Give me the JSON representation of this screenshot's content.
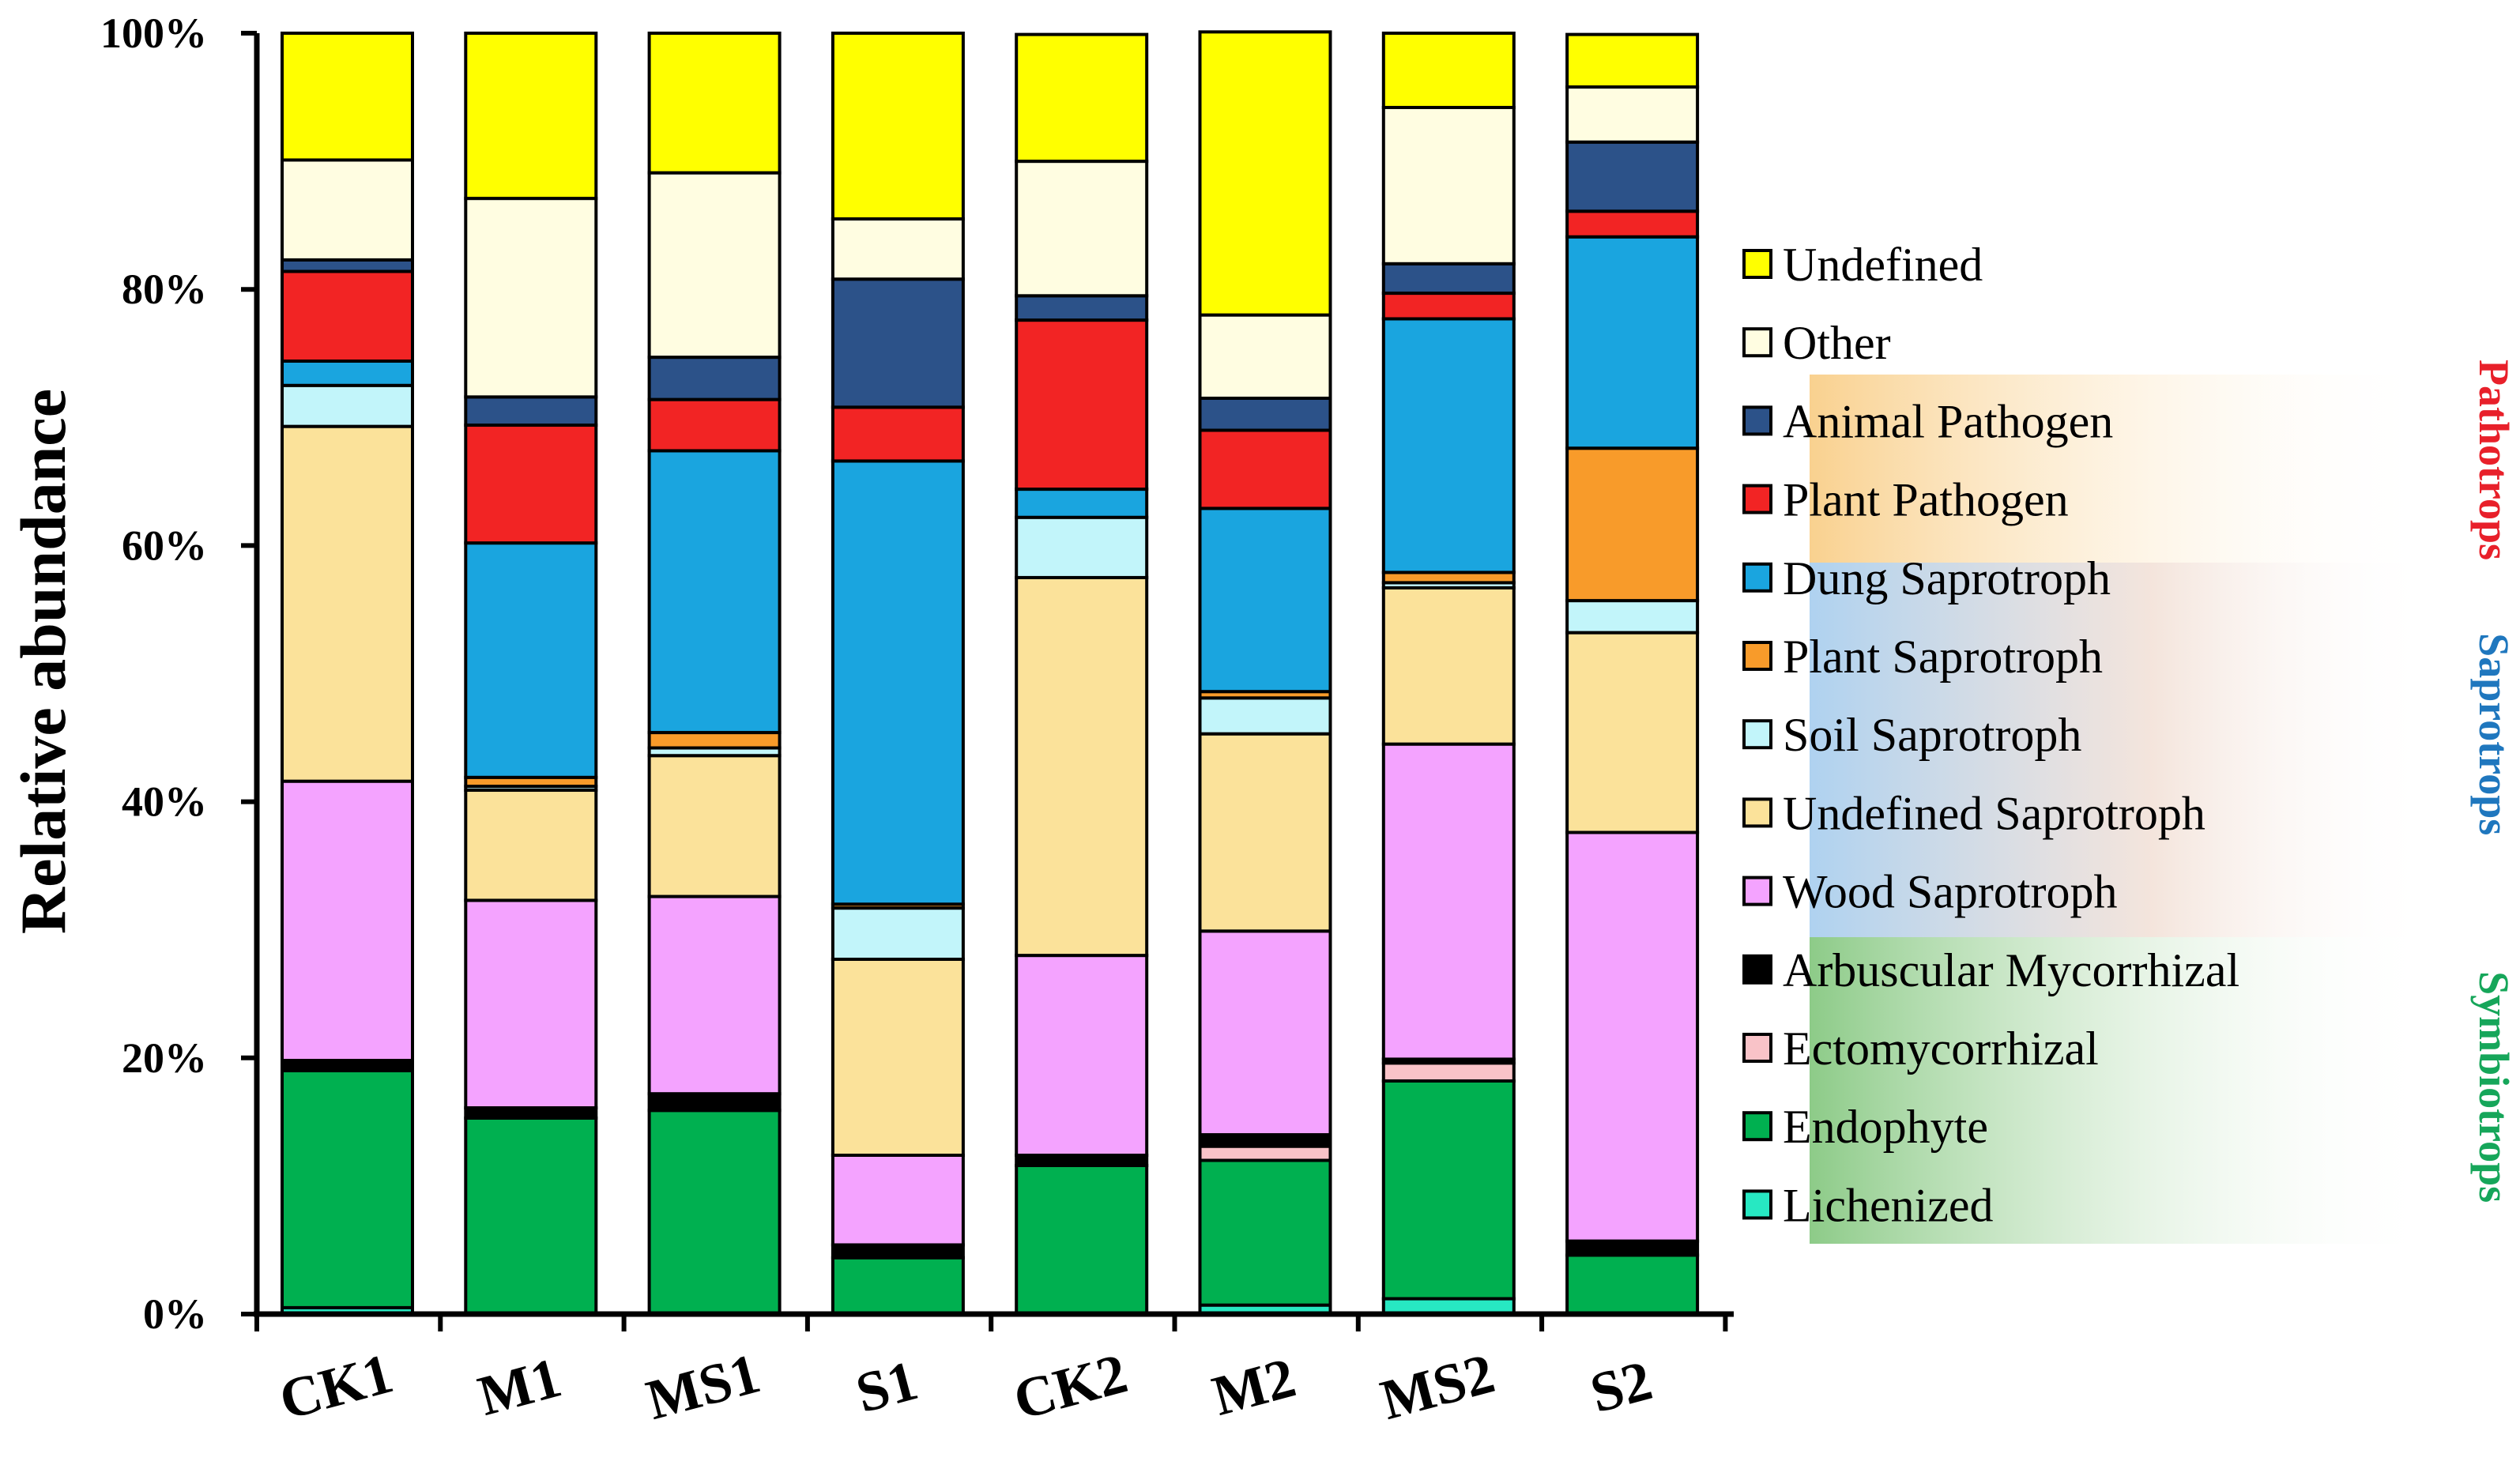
{
  "chart_data": {
    "type": "bar",
    "stacked": true,
    "title": "",
    "xlabel": "",
    "ylabel": "Relative abundance",
    "ylim": [
      0,
      100
    ],
    "ytick_labels": [
      "0%",
      "20%",
      "40%",
      "60%",
      "80%",
      "100%"
    ],
    "ytick_values": [
      0,
      20,
      40,
      60,
      80,
      100
    ],
    "categories": [
      "CK1",
      "M1",
      "MS1",
      "S1",
      "CK2",
      "M2",
      "MS2",
      "S2"
    ],
    "series": [
      {
        "name": "Lichenized",
        "color": "#27E8C2",
        "values": [
          0.5,
          0,
          0,
          0,
          0,
          0.7,
          1.2,
          0
        ]
      },
      {
        "name": "Endophyte",
        "color": "#00B050",
        "values": [
          18.5,
          15.3,
          15.9,
          4.4,
          11.6,
          11.3,
          17.0,
          4.6
        ]
      },
      {
        "name": "Ectomycorrhizal",
        "color": "#F9C3C8",
        "values": [
          0,
          0,
          0,
          0,
          0,
          1.1,
          1.4,
          0
        ]
      },
      {
        "name": "Arbuscular Mycorrhizal",
        "color": "#000000",
        "values": [
          0.8,
          0.8,
          1.3,
          1.0,
          0.8,
          0.9,
          0.3,
          1.1
        ]
      },
      {
        "name": "Wood Saprotroph",
        "color": "#F4A3FF",
        "values": [
          21.8,
          16.2,
          15.4,
          7.0,
          15.6,
          15.9,
          24.6,
          31.9
        ]
      },
      {
        "name": "Undefined Saprotroph",
        "color": "#FBE29A",
        "values": [
          27.7,
          8.6,
          11.0,
          15.3,
          29.5,
          15.4,
          12.2,
          15.6
        ]
      },
      {
        "name": "Soil Saprotroph",
        "color": "#C2F5FA",
        "values": [
          3.2,
          0.3,
          0.6,
          4.0,
          4.7,
          2.8,
          0.4,
          2.5
        ]
      },
      {
        "name": "Plant Saprotroph",
        "color": "#F89B2A",
        "values": [
          0,
          0.7,
          1.2,
          0.3,
          0,
          0.5,
          0.8,
          11.9
        ]
      },
      {
        "name": "Dung Saprotroph",
        "color": "#1AA5DF",
        "values": [
          1.9,
          18.3,
          22.0,
          34.6,
          2.2,
          14.3,
          19.8,
          16.5
        ]
      },
      {
        "name": "Plant Pathogen",
        "color": "#F22424",
        "values": [
          7.0,
          9.2,
          4.0,
          4.2,
          13.2,
          6.1,
          2.0,
          2.0
        ]
      },
      {
        "name": "Animal Pathogen",
        "color": "#2C5289",
        "values": [
          0.9,
          2.2,
          3.3,
          10.0,
          1.9,
          2.5,
          2.3,
          5.4
        ]
      },
      {
        "name": "Other",
        "color": "#FFFDE1",
        "values": [
          7.8,
          15.5,
          14.4,
          4.7,
          10.5,
          6.5,
          12.2,
          4.3
        ]
      },
      {
        "name": "Undefined",
        "color": "#FFFF00",
        "values": [
          9.9,
          12.9,
          10.9,
          14.5,
          9.9,
          22.1,
          5.8,
          4.1
        ]
      }
    ],
    "legend": {
      "placement": "right",
      "entries": [
        "Undefined",
        "Other",
        "Animal Pathogen",
        "Plant Pathogen",
        "Dung Saprotroph",
        "Plant Saprotroph",
        "Soil Saprotroph",
        "Undefined Saprotroph",
        "Wood Saprotroph",
        "Arbuscular Mycorrhizal",
        "Ectomycorrhizal",
        "Endophyte",
        "Lichenized"
      ]
    },
    "groups": [
      {
        "label": "Pathotrops",
        "color": "#E8202A",
        "members": [
          "Animal Pathogen",
          "Plant Pathogen"
        ]
      },
      {
        "label": "Saprotrops",
        "color": "#1F77BE",
        "members": [
          "Dung Saprotroph",
          "Plant Saprotroph",
          "Soil Saprotroph",
          "Undefined Saprotroph",
          "Wood Saprotroph"
        ]
      },
      {
        "label": "Symbiotrops",
        "color": "#16A65A",
        "members": [
          "Arbuscular Mycorrhizal",
          "Ectomycorrhizal",
          "Endophyte",
          "Lichenized"
        ]
      }
    ]
  }
}
